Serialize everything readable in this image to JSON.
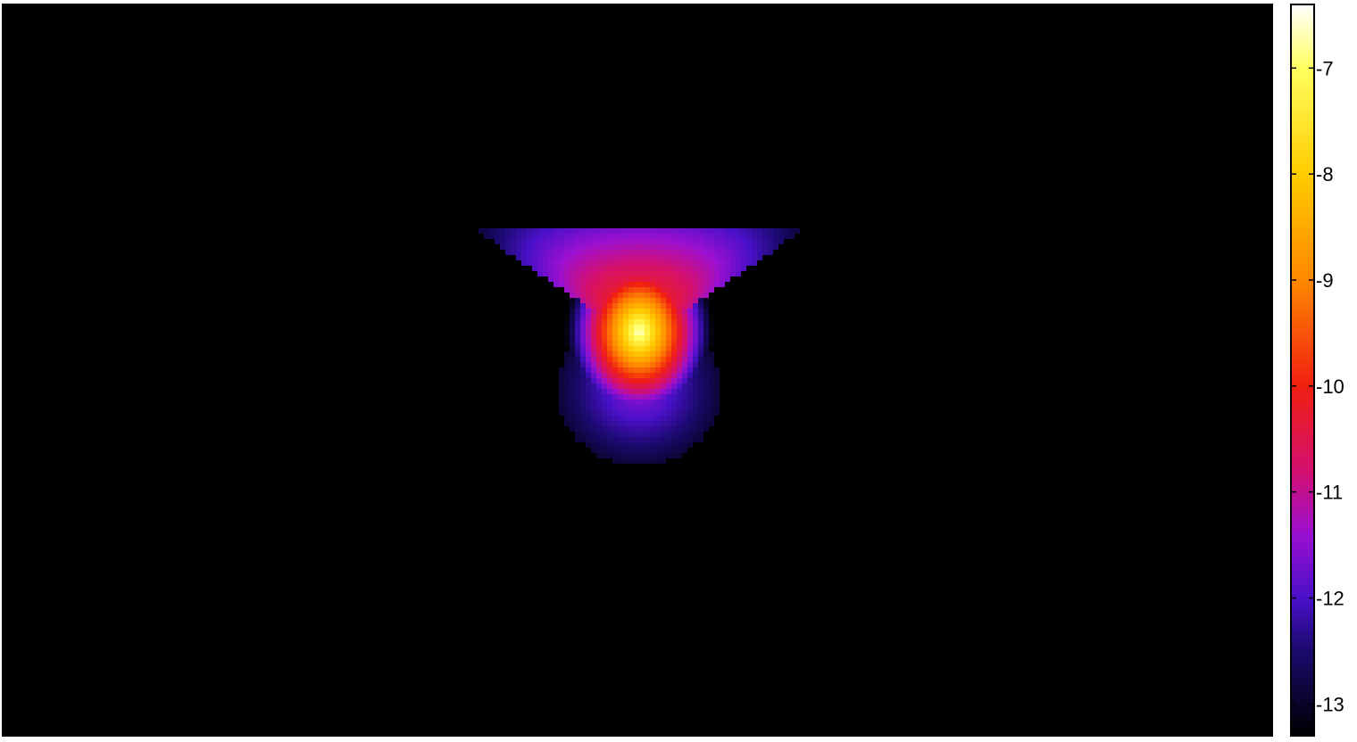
{
  "chart_data": {
    "type": "heatmap",
    "title": "",
    "xlabel": "",
    "ylabel": "",
    "axes_visible": false,
    "background_color": "#000000",
    "colormap": {
      "name": "hot-purple",
      "stops": [
        {
          "value": -13.3,
          "color": "#000000"
        },
        {
          "value": -12.5,
          "color": "#1a0a6e"
        },
        {
          "value": -12.0,
          "color": "#4a10c8"
        },
        {
          "value": -11.4,
          "color": "#9a10d0"
        },
        {
          "value": -10.8,
          "color": "#d41070"
        },
        {
          "value": -10.0,
          "color": "#f02010"
        },
        {
          "value": -9.0,
          "color": "#ff8800"
        },
        {
          "value": -8.0,
          "color": "#ffcc00"
        },
        {
          "value": -7.0,
          "color": "#ffff60"
        },
        {
          "value": -6.4,
          "color": "#ffffff"
        }
      ]
    },
    "colorbar": {
      "position": "right",
      "clim": [
        -13.3,
        -6.4
      ],
      "ticks": [
        -13,
        -12,
        -11,
        -10,
        -9,
        -8,
        -7
      ],
      "tick_labels": [
        "-13",
        "-12",
        "-11",
        "-10",
        "-9",
        "-8",
        "-7"
      ]
    },
    "field_description": "log-intensity field, brightest at a single source, spreading as an inverted cone upward and a rounded lobe downward"
  }
}
